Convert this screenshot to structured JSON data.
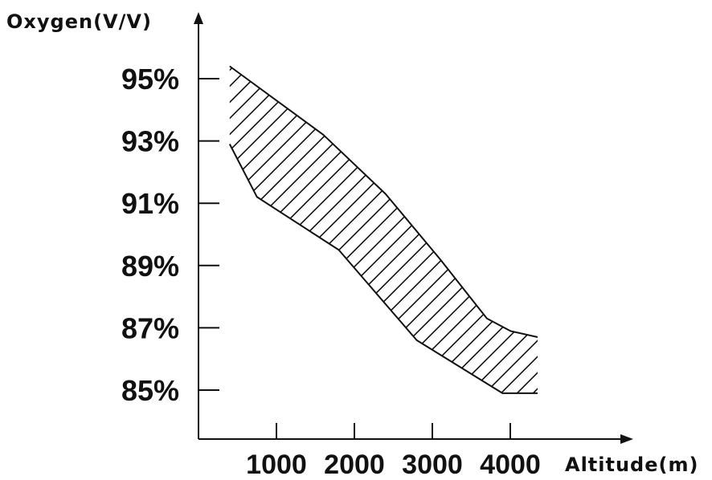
{
  "chart_data": {
    "type": "area",
    "ylabel": "Oxygen(V/V)",
    "xlabel": "Altitude(m)",
    "y_ticks": [
      "95%",
      "93%",
      "91%",
      "89%",
      "87%",
      "85%"
    ],
    "y_tick_values": [
      95,
      93,
      91,
      89,
      87,
      85
    ],
    "x_ticks": [
      "1000",
      "2000",
      "3000",
      "4000"
    ],
    "x_tick_values": [
      1000,
      2000,
      3000,
      4000
    ],
    "series": [
      {
        "upper": {
          "x": [
            400,
            1600,
            2400,
            3100,
            3700,
            4000,
            4350
          ],
          "y": [
            95.4,
            93.2,
            91.3,
            89.2,
            87.3,
            86.9,
            86.7
          ]
        },
        "lower": {
          "x": [
            400,
            750,
            1800,
            2800,
            3900,
            4350
          ],
          "y": [
            92.9,
            91.2,
            89.5,
            86.6,
            84.9,
            84.9
          ]
        }
      }
    ],
    "fill_pattern": "diagonal-hatch",
    "grid": false
  }
}
